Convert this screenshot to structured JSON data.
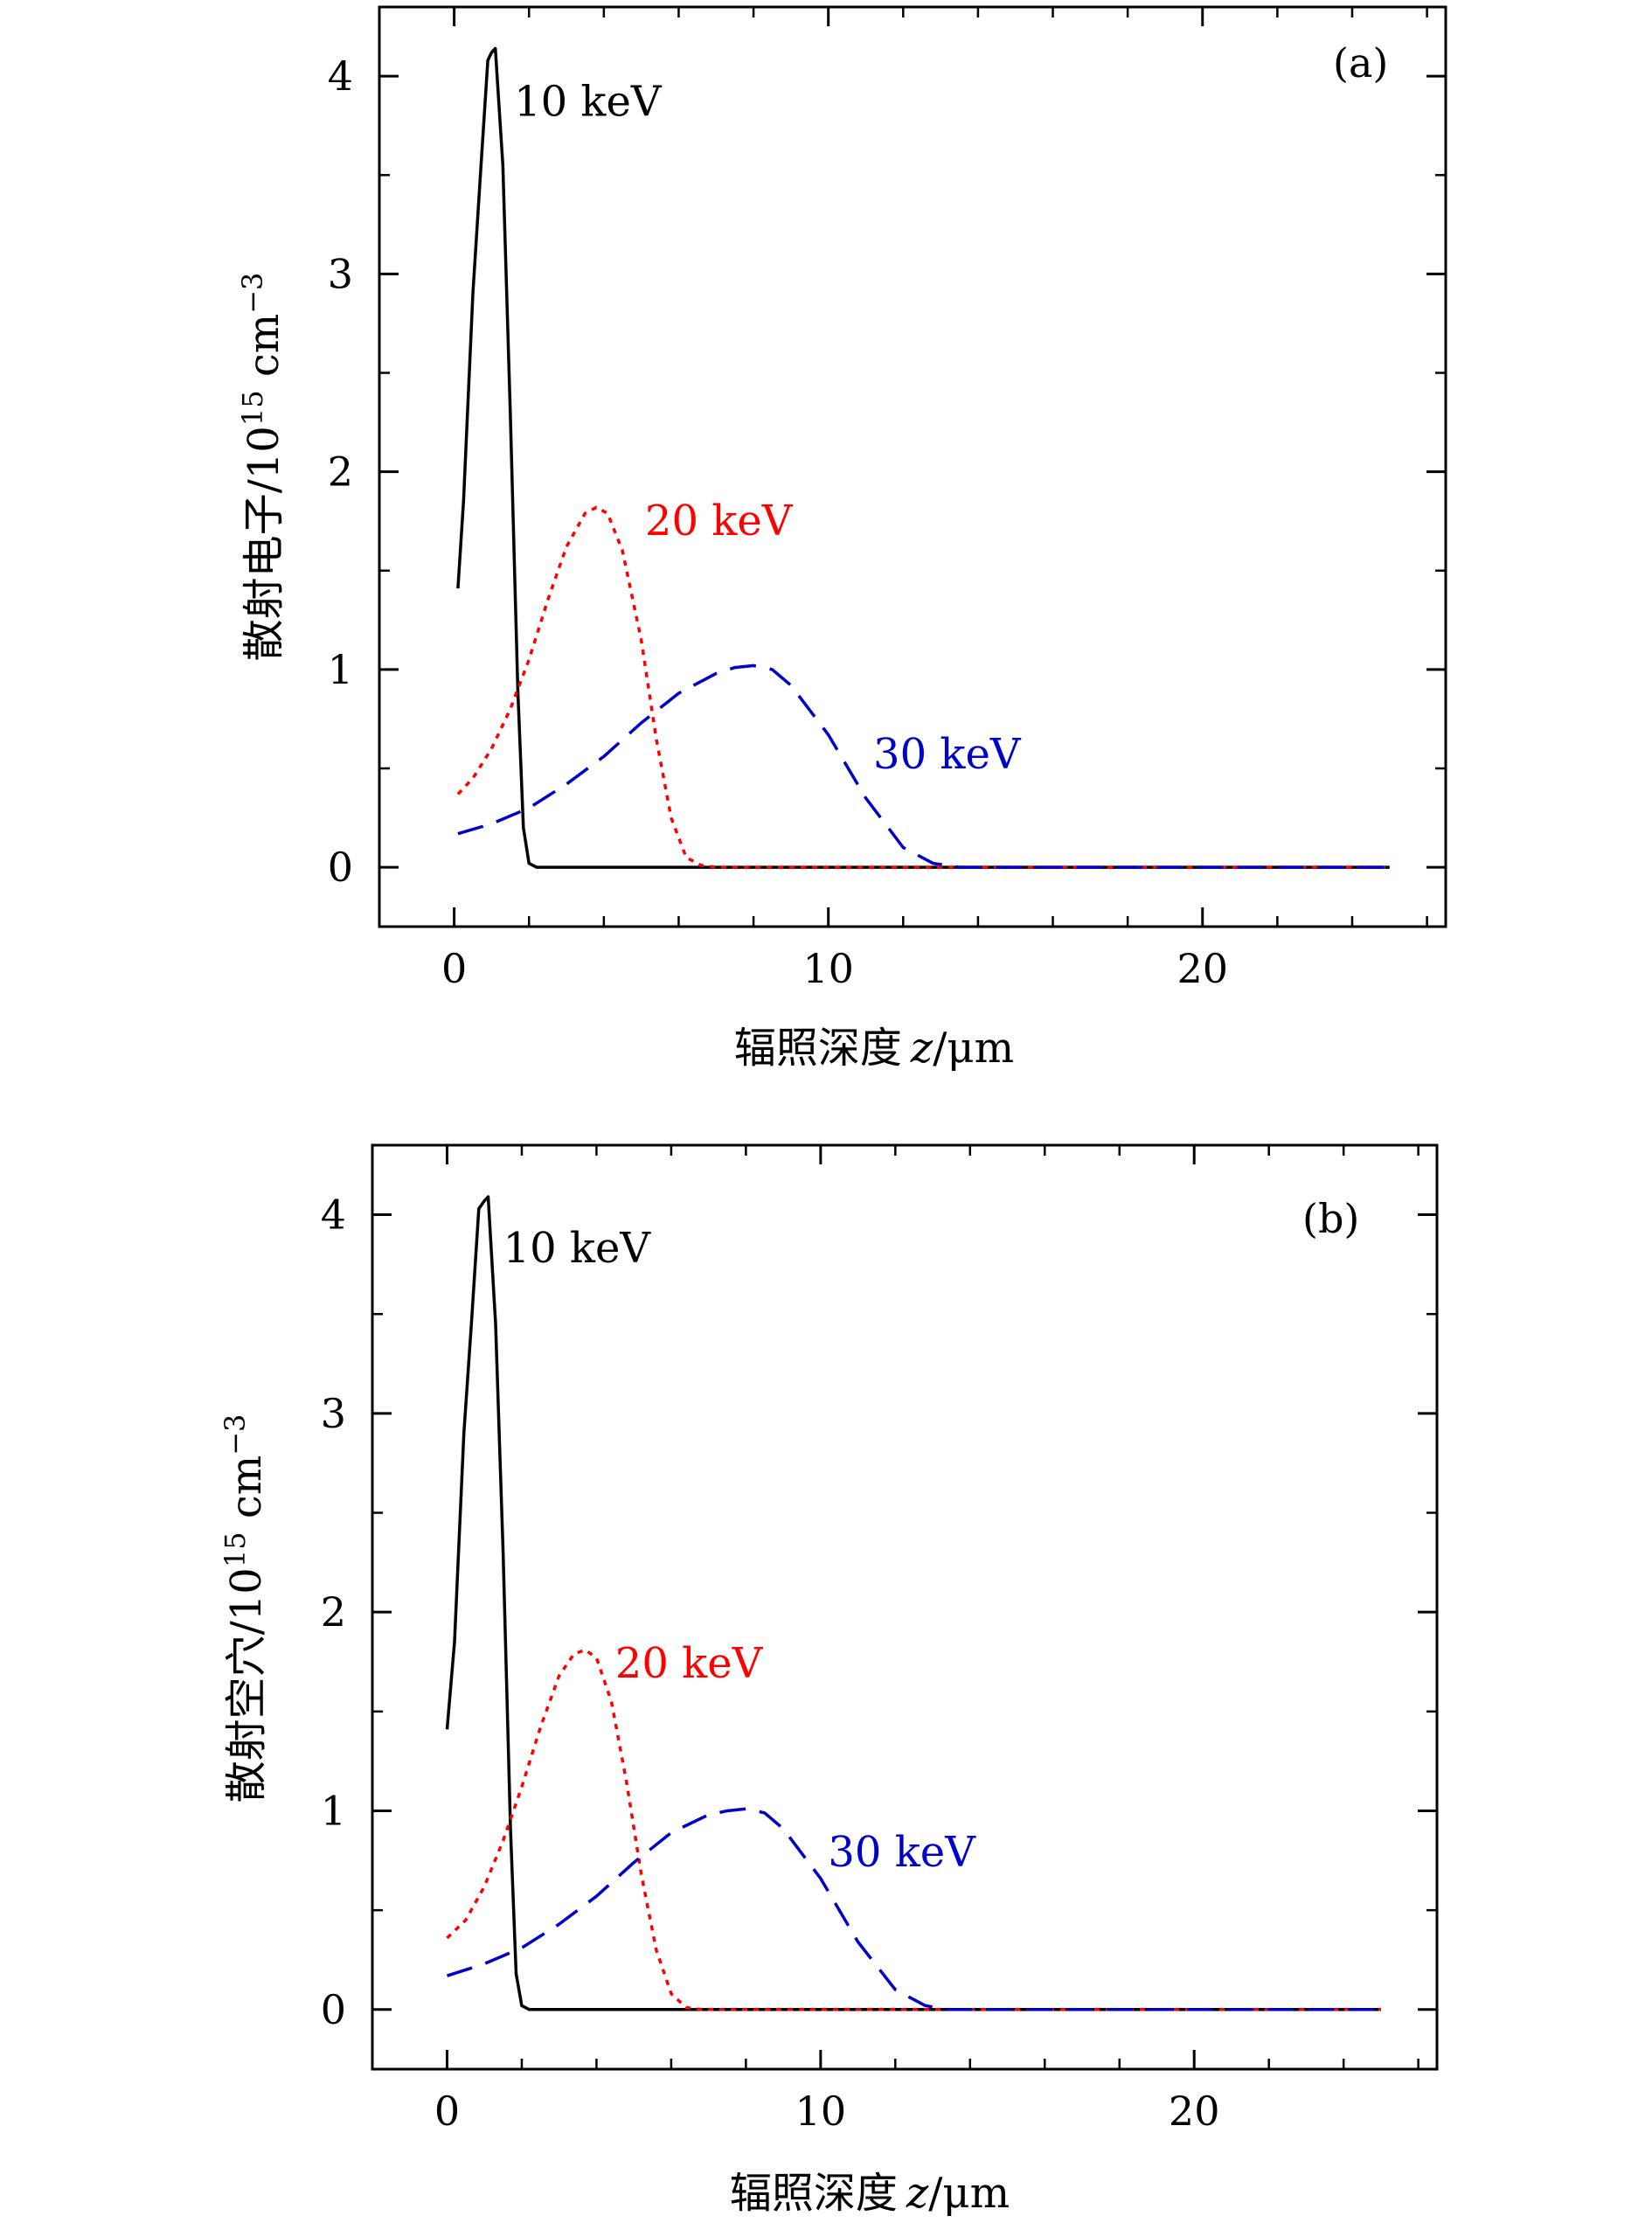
{
  "chart_data": [
    {
      "type": "line",
      "panel_label": "(a)",
      "xlabel_main": "辐照深度",
      "xlabel_var": "z",
      "xlabel_unit": "/μm",
      "ylabel_main": "散射电子/10",
      "ylabel_exp": "15",
      "ylabel_unit": " cm",
      "ylabel_unit_exp": "−3",
      "xlim": [
        -2,
        26.5
      ],
      "ylim": [
        -0.3,
        4.35
      ],
      "xticks": [
        0,
        10,
        20
      ],
      "xtick_labels": [
        "0",
        "10",
        "20"
      ],
      "yticks": [
        0,
        1,
        2,
        3,
        4
      ],
      "ytick_labels": [
        "0",
        "1",
        "2",
        "3",
        "4"
      ],
      "series": [
        {
          "name": "10 keV",
          "color": "#000000",
          "dash": "solid",
          "label_at": [
            1.6,
            3.8
          ],
          "x": [
            0.1,
            0.25,
            0.5,
            0.7,
            0.9,
            1.0,
            1.1,
            1.3,
            1.5,
            1.7,
            1.85,
            2.0,
            2.2,
            25
          ],
          "y": [
            1.41,
            1.85,
            2.9,
            3.5,
            4.08,
            4.12,
            4.14,
            3.55,
            2.3,
            0.9,
            0.2,
            0.02,
            0.0,
            0.0
          ]
        },
        {
          "name": "20 keV",
          "color": "#ff0000",
          "dash": "dot",
          "label_at": [
            5.1,
            1.68
          ],
          "x": [
            0.1,
            0.5,
            1.0,
            1.5,
            2.0,
            2.5,
            3.0,
            3.5,
            3.8,
            4.1,
            4.5,
            5.0,
            5.4,
            5.8,
            6.2,
            6.6,
            7.0,
            25
          ],
          "y": [
            0.37,
            0.45,
            0.6,
            0.8,
            1.05,
            1.35,
            1.62,
            1.79,
            1.82,
            1.79,
            1.6,
            1.15,
            0.65,
            0.25,
            0.05,
            0.01,
            0.0,
            0.0
          ]
        },
        {
          "name": "30 keV",
          "color": "#0000cc",
          "dash": "dash",
          "label_at": [
            11.2,
            0.5
          ],
          "x": [
            0.1,
            1.0,
            2.0,
            3.0,
            4.0,
            5.0,
            6.0,
            7.0,
            7.5,
            8.0,
            8.5,
            9.0,
            10.0,
            11.0,
            12.0,
            12.8,
            13.5,
            25
          ],
          "y": [
            0.17,
            0.22,
            0.3,
            0.42,
            0.56,
            0.73,
            0.88,
            0.98,
            1.01,
            1.02,
            1.0,
            0.92,
            0.67,
            0.35,
            0.1,
            0.02,
            0.0,
            0.0
          ]
        }
      ]
    },
    {
      "type": "line",
      "panel_label": "(b)",
      "xlabel_main": "辐照深度",
      "xlabel_var": "z",
      "xlabel_unit": "/μm",
      "ylabel_main": "散射空穴/10",
      "ylabel_exp": "15",
      "ylabel_unit": " cm",
      "ylabel_unit_exp": "−3",
      "xlim": [
        -2,
        26.5
      ],
      "ylim": [
        -0.3,
        4.35
      ],
      "xticks": [
        0,
        10,
        20
      ],
      "xtick_labels": [
        "0",
        "10",
        "20"
      ],
      "yticks": [
        0,
        1,
        2,
        3,
        4
      ],
      "ytick_labels": [
        "0",
        "1",
        "2",
        "3",
        "4"
      ],
      "series": [
        {
          "name": "10 keV",
          "color": "#000000",
          "dash": "solid",
          "label_at": [
            1.5,
            3.76
          ],
          "x": [
            0.0,
            0.2,
            0.45,
            0.65,
            0.85,
            1.0,
            1.1,
            1.3,
            1.5,
            1.7,
            1.85,
            2.0,
            2.2,
            25
          ],
          "y": [
            1.41,
            1.85,
            2.9,
            3.45,
            4.03,
            4.07,
            4.09,
            3.45,
            2.3,
            0.9,
            0.18,
            0.02,
            0.0,
            0.0
          ]
        },
        {
          "name": "20 keV",
          "color": "#ff0000",
          "dash": "dot",
          "label_at": [
            4.5,
            1.67
          ],
          "x": [
            0.0,
            0.5,
            1.0,
            1.5,
            2.0,
            2.5,
            3.0,
            3.4,
            3.7,
            4.0,
            4.4,
            4.8,
            5.2,
            5.6,
            6.0,
            6.4,
            6.8,
            25
          ],
          "y": [
            0.36,
            0.45,
            0.62,
            0.85,
            1.12,
            1.42,
            1.68,
            1.79,
            1.81,
            1.77,
            1.55,
            1.15,
            0.68,
            0.3,
            0.08,
            0.01,
            0.0,
            0.0
          ]
        },
        {
          "name": "30 keV",
          "color": "#0000cc",
          "dash": "dash",
          "label_at": [
            10.2,
            0.72
          ],
          "x": [
            0.0,
            1.0,
            2.0,
            3.0,
            4.0,
            5.0,
            6.0,
            7.0,
            7.5,
            8.0,
            8.5,
            9.0,
            10.0,
            11.0,
            12.0,
            12.8,
            13.4,
            25
          ],
          "y": [
            0.17,
            0.23,
            0.31,
            0.43,
            0.57,
            0.74,
            0.89,
            0.98,
            1.0,
            1.01,
            0.99,
            0.91,
            0.66,
            0.34,
            0.1,
            0.02,
            0.0,
            0.0
          ]
        }
      ]
    }
  ]
}
